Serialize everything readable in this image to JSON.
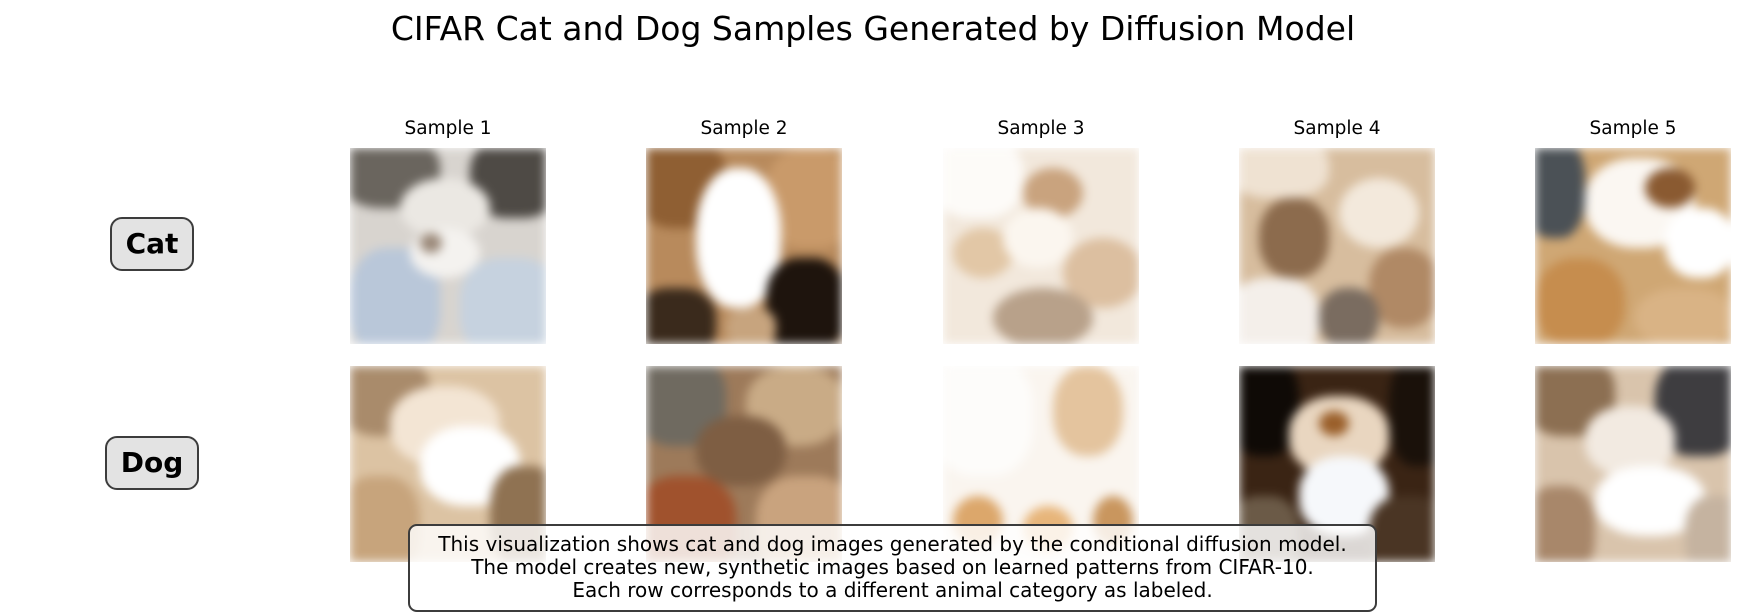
{
  "title": "CIFAR Cat and Dog Samples Generated by Diffusion Model",
  "columns": [
    "Sample 1",
    "Sample 2",
    "Sample 3",
    "Sample 4",
    "Sample 5"
  ],
  "rows": [
    {
      "label": "Cat"
    },
    {
      "label": "Dog"
    }
  ],
  "caption": {
    "line1": "This visualization shows cat and dog images generated by the conditional diffusion model.",
    "line2": "The model creates new, synthetic images based on learned patterns from CIFAR-10.",
    "line3": "Each row corresponds to a different animal category as labeled."
  },
  "colors": {
    "label_box_fill": "#e3e3e3",
    "border": "#3c3c3c"
  }
}
